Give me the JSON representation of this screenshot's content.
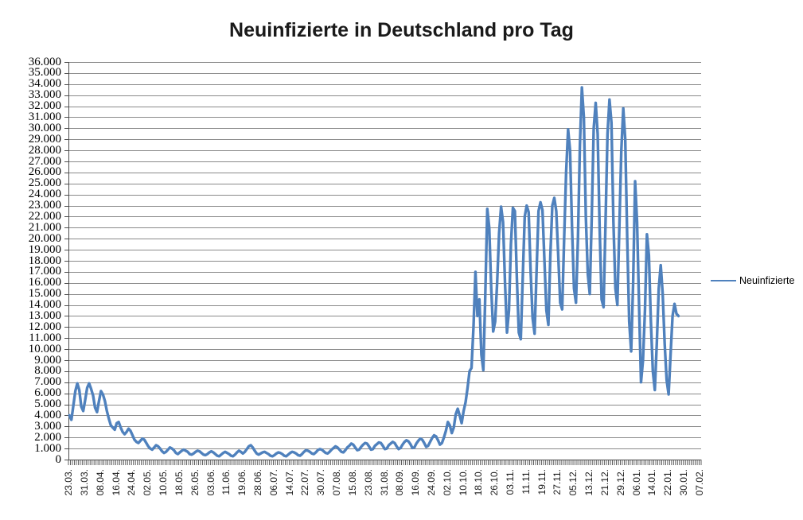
{
  "title": "Neuinfizierte in Deutschland pro Tag",
  "legend": {
    "label": "Neuinfizierte"
  },
  "colors": {
    "series_line": "#4F81BD",
    "gridline": "#8A8A8A",
    "axis": "#4D4D4D",
    "text": "#000000",
    "background": "#FFFFFF"
  },
  "chart_data": {
    "type": "line",
    "title": "Neuinfizierte in Deutschland pro Tag",
    "xlabel": "",
    "ylabel": "",
    "ylim": [
      0,
      36000
    ],
    "y_tick_step": 1000,
    "grid": "horizontal-major",
    "legend_position": "right-middle",
    "x_tick_label_interval": 8,
    "x_tick_labels": [
      "23.03.",
      "31.03.",
      "08.04.",
      "16.04.",
      "24.04.",
      "02.05.",
      "10.05.",
      "18.05.",
      "26.05.",
      "03.06.",
      "11.06.",
      "19.06.",
      "28.06.",
      "06.07.",
      "14.07.",
      "22.07.",
      "30.07.",
      "07.08.",
      "15.08.",
      "23.08.",
      "31.08.",
      "08.09.",
      "16.09.",
      "24.09.",
      "02.10.",
      "10.10.",
      "18.10.",
      "26.10.",
      "03.11.",
      "11.11.",
      "19.11.",
      "27.11.",
      "05.12.",
      "13.12.",
      "21.12.",
      "29.12.",
      "06.01.",
      "14.01.",
      "22.01.",
      "30.01.",
      "07.02."
    ],
    "y_tick_labels_top_down": [
      "36.000",
      "35.000",
      "34.000",
      "33.000",
      "32.000",
      "31.000",
      "30.000",
      "29.000",
      "28.000",
      "27.000",
      "26.000",
      "25.000",
      "24.000",
      "23.000",
      "22.000",
      "21.000",
      "20.000",
      "19.000",
      "18.000",
      "17.000",
      "16.000",
      "15.000",
      "14.000",
      "13.000",
      "12.000",
      "11.000",
      "10.000",
      "9.000",
      "8.000",
      "7.000",
      "6.000",
      "5.000",
      "4.000",
      "3.000",
      "2.000",
      "1.000",
      "0"
    ],
    "series": [
      {
        "name": "Neuinfizierte",
        "color": "#4F81BD",
        "values": [
          4000,
          3600,
          4900,
          6200,
          6900,
          6300,
          4800,
          4400,
          5400,
          6500,
          6900,
          6400,
          5800,
          4700,
          4300,
          5300,
          6200,
          5900,
          5300,
          4400,
          3700,
          3100,
          2900,
          2700,
          3300,
          3400,
          2900,
          2500,
          2300,
          2500,
          2800,
          2600,
          2200,
          1800,
          1600,
          1500,
          1700,
          1900,
          1800,
          1500,
          1200,
          1000,
          900,
          1100,
          1300,
          1200,
          1000,
          750,
          600,
          700,
          900,
          1100,
          1000,
          850,
          600,
          500,
          650,
          800,
          900,
          800,
          700,
          500,
          450,
          550,
          700,
          800,
          750,
          600,
          450,
          400,
          500,
          650,
          750,
          650,
          500,
          350,
          300,
          450,
          600,
          700,
          600,
          500,
          350,
          300,
          450,
          650,
          800,
          700,
          550,
          700,
          950,
          1200,
          1300,
          1100,
          800,
          550,
          450,
          550,
          650,
          700,
          600,
          500,
          350,
          300,
          400,
          550,
          650,
          600,
          500,
          350,
          300,
          450,
          600,
          700,
          650,
          550,
          400,
          350,
          500,
          700,
          850,
          800,
          700,
          550,
          500,
          650,
          850,
          950,
          900,
          750,
          600,
          550,
          700,
          900,
          1050,
          1200,
          1100,
          900,
          700,
          650,
          850,
          1100,
          1250,
          1450,
          1350,
          1100,
          850,
          900,
          1150,
          1350,
          1500,
          1450,
          1200,
          900,
          950,
          1250,
          1400,
          1550,
          1500,
          1250,
          950,
          1000,
          1300,
          1450,
          1600,
          1500,
          1200,
          950,
          1050,
          1350,
          1600,
          1750,
          1650,
          1400,
          1050,
          1100,
          1450,
          1700,
          1900,
          1800,
          1500,
          1150,
          1250,
          1600,
          1950,
          2200,
          2100,
          1750,
          1350,
          1500,
          2000,
          2600,
          3400,
          3100,
          2400,
          2900,
          4100,
          4600,
          4000,
          3300,
          4400,
          5200,
          6500,
          8000,
          8300,
          12000,
          17000,
          13000,
          14500,
          9500,
          8100,
          15000,
          22700,
          21000,
          15500,
          11600,
          12500,
          16000,
          20500,
          22900,
          21500,
          16000,
          11500,
          13500,
          19500,
          22800,
          22500,
          16500,
          11500,
          10900,
          16500,
          22000,
          23000,
          22400,
          17000,
          12800,
          11400,
          17000,
          22500,
          23300,
          22600,
          18000,
          13500,
          12200,
          18500,
          23000,
          23700,
          22500,
          18500,
          14200,
          13600,
          20000,
          26000,
          29900,
          28000,
          21000,
          15500,
          14200,
          20000,
          28500,
          33700,
          31000,
          22000,
          16800,
          15000,
          22000,
          30000,
          32300,
          29500,
          21000,
          14500,
          13800,
          21500,
          29500,
          32600,
          30500,
          21500,
          15500,
          14000,
          21000,
          28000,
          31800,
          29000,
          20000,
          12500,
          9800,
          16000,
          25200,
          21500,
          14000,
          7000,
          9000,
          13500,
          20400,
          18500,
          12500,
          8000,
          6300,
          10500,
          15500,
          17600,
          15000,
          10500,
          7200,
          5900,
          9500,
          13000,
          14100,
          13200,
          13000,
          null,
          null,
          null,
          null,
          null,
          null,
          null,
          null,
          null,
          null,
          null
        ]
      }
    ]
  }
}
